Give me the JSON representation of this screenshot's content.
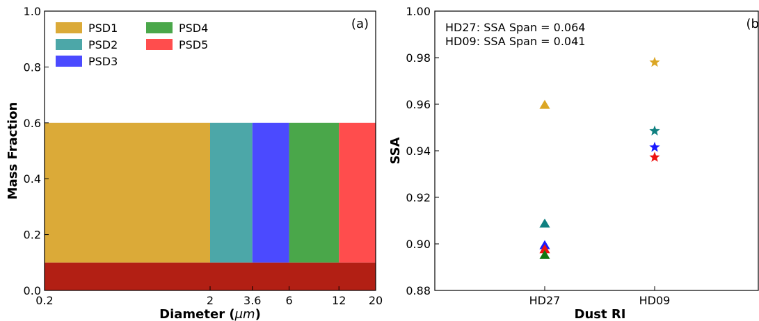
{
  "chart_data": [
    {
      "type": "bar",
      "panel_label": "(a)",
      "xlabel": "Diameter (μm)",
      "ylabel": "Mass Fraction",
      "x_scale": "log",
      "xlim": [
        0.2,
        20
      ],
      "ylim": [
        0.0,
        1.0
      ],
      "x_ticks": [
        {
          "value": 0.2,
          "label": "0.2"
        },
        {
          "value": 2,
          "label": "2"
        },
        {
          "value": 3.6,
          "label": "3.6"
        },
        {
          "value": 6,
          "label": "6"
        },
        {
          "value": 12,
          "label": "12"
        },
        {
          "value": 20,
          "label": "20"
        }
      ],
      "y_ticks": [
        {
          "value": 0.0,
          "label": "0.0"
        },
        {
          "value": 0.2,
          "label": "0.2"
        },
        {
          "value": 0.4,
          "label": "0.4"
        },
        {
          "value": 0.6,
          "label": "0.6"
        },
        {
          "value": 0.8,
          "label": "0.8"
        },
        {
          "value": 1.0,
          "label": "1.0"
        }
      ],
      "base_layer": {
        "x0": 0.2,
        "x1": 20,
        "y0": 0.0,
        "y1": 0.1,
        "color": "#b21f14"
      },
      "series": [
        {
          "name": "PSD1",
          "x0": 0.2,
          "x1": 2,
          "y0": 0.1,
          "y1": 0.6,
          "color": "#dbaa38"
        },
        {
          "name": "PSD2",
          "x0": 2,
          "x1": 3.6,
          "y0": 0.1,
          "y1": 0.6,
          "color": "#4ca7a8"
        },
        {
          "name": "PSD3",
          "x0": 3.6,
          "x1": 6,
          "y0": 0.1,
          "y1": 0.6,
          "color": "#4b4aff"
        },
        {
          "name": "PSD4",
          "x0": 6,
          "x1": 12,
          "y0": 0.1,
          "y1": 0.6,
          "color": "#4aa74a"
        },
        {
          "name": "PSD5",
          "x0": 12,
          "x1": 20,
          "y0": 0.1,
          "y1": 0.6,
          "color": "#ff4d4d"
        }
      ],
      "legend_position": "top-left",
      "grid": false
    },
    {
      "type": "scatter",
      "panel_label": "(b)",
      "xlabel": "Dust RI",
      "ylabel": "SSA",
      "categories": [
        "HD27",
        "HD09"
      ],
      "ylim": [
        0.88,
        1.0
      ],
      "y_ticks": [
        {
          "value": 0.88,
          "label": "0.88"
        },
        {
          "value": 0.9,
          "label": "0.90"
        },
        {
          "value": 0.92,
          "label": "0.92"
        },
        {
          "value": 0.94,
          "label": "0.94"
        },
        {
          "value": 0.96,
          "label": "0.96"
        },
        {
          "value": 0.98,
          "label": "0.98"
        },
        {
          "value": 1.0,
          "label": "1.00"
        }
      ],
      "annotations": [
        "HD27: SSA Span = 0.064",
        "HD09: SSA Span = 0.041"
      ],
      "series": [
        {
          "marker": "triangle",
          "category": "HD27",
          "values": [
            {
              "y": 0.9595,
              "color": "#dba624"
            },
            {
              "y": 0.9085,
              "color": "#0f8080"
            },
            {
              "y": 0.8992,
              "color": "#1a1aff"
            },
            {
              "y": 0.8975,
              "color": "#ee1111"
            },
            {
              "y": 0.895,
              "color": "#117711"
            }
          ]
        },
        {
          "marker": "star",
          "category": "HD09",
          "values": [
            {
              "y": 0.978,
              "color": "#dba624"
            },
            {
              "y": 0.9485,
              "color": "#0f8080"
            },
            {
              "y": 0.9415,
              "color": "#1a1aff"
            },
            {
              "y": 0.9372,
              "color": "#ee1111"
            }
          ]
        }
      ],
      "grid": false
    }
  ]
}
